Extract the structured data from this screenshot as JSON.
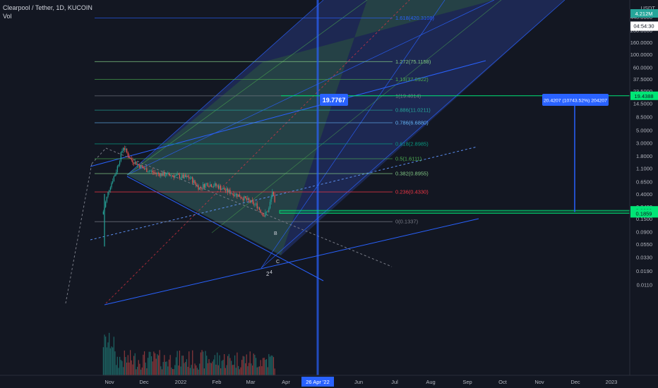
{
  "header": {
    "symbol_line": "Clearpool / Tether, 1D, KUCOIN",
    "volume_label": "Vol"
  },
  "price_axis": {
    "unit": "USDT",
    "ticks": [
      "440.0000",
      "260.0000",
      "160.0000",
      "100.0000",
      "60.0000",
      "37.5000",
      "23.5000",
      "14.5000",
      "8.5000",
      "5.0000",
      "3.0000",
      "1.8000",
      "1.1000",
      "0.6500",
      "0.4000",
      "0.2400",
      "0.1500",
      "0.0900",
      "0.0550",
      "0.0330",
      "0.0190",
      "0.0110"
    ],
    "tick_values": [
      440,
      260,
      160,
      100,
      60,
      37.5,
      23.5,
      14.5,
      8.5,
      5,
      3,
      1.8,
      1.1,
      0.65,
      0.4,
      0.24,
      0.15,
      0.09,
      0.055,
      0.033,
      0.019,
      0.011
    ],
    "labels": {
      "target": "19.4388",
      "price_upper": "0.2089",
      "price_current": "0.1956",
      "countdown": "04:54:30",
      "price_lower": "0.1859",
      "volume": "4.212M"
    }
  },
  "time_axis": {
    "ticks": [
      "Nov",
      "Dec",
      "2022",
      "Feb",
      "Mar",
      "Apr",
      "26 Apr '22",
      "Jun",
      "Jul",
      "Aug",
      "Sep",
      "Oct",
      "Nov",
      "Dec",
      "2023"
    ],
    "highlight": "26 Apr '22"
  },
  "fib_levels": [
    {
      "label": "1.618(420.3108)",
      "value": 420.31,
      "color": "#2962ff"
    },
    {
      "label": "1.272(75.1158)",
      "value": 75.1158,
      "color": "#81c784"
    },
    {
      "label": "1.13(37.0922)",
      "value": 37.0922,
      "color": "#4caf50"
    },
    {
      "label": "1(19.4014)",
      "value": 19.4014,
      "color": "#787b86"
    },
    {
      "label": "0.886(11.0211)",
      "value": 11.0211,
      "color": "#26a69a"
    },
    {
      "label": "0.786(6.6880)",
      "value": 6.688,
      "color": "#64b5f6"
    },
    {
      "label": "0.618(2.8985)",
      "value": 2.8985,
      "color": "#089981"
    },
    {
      "label": "0.5(1.6111)",
      "value": 1.6111,
      "color": "#4caf50"
    },
    {
      "label": "0.382(0.8955)",
      "value": 0.8955,
      "color": "#81c784"
    },
    {
      "label": "0.236(0.4330)",
      "value": 0.433,
      "color": "#f23645"
    },
    {
      "label": "0(0.1337)",
      "value": 0.1337,
      "color": "#787b86"
    }
  ],
  "annotations": {
    "cursor_price": "19.7767",
    "measure_label": "20.4207 (10743.52%) 204207",
    "wave_labels": [
      "2",
      "4",
      "B",
      "C"
    ]
  },
  "colors": {
    "background": "#131722",
    "blue_accent": "#2962ff",
    "green_accent": "#00e676",
    "candle_up": "#26a69a",
    "candle_down": "#ef5350",
    "pitchfork_blue": "#2a3f8f",
    "pitchfork_green": "#2e5a3a"
  },
  "chart_data": {
    "type": "candlestick",
    "title": "Clearpool / Tether, 1D, KUCOIN",
    "ylabel": "USDT",
    "y_scale": "log",
    "ylim": [
      0.0085,
      700
    ],
    "x_range": [
      "2021-10-18",
      "2023-01-20"
    ],
    "price_path": [
      {
        "x": "2021-10-28",
        "y": 0.2
      },
      {
        "x": "2021-11-02",
        "y": 0.5
      },
      {
        "x": "2021-11-08",
        "y": 1.0
      },
      {
        "x": "2021-11-14",
        "y": 2.6
      },
      {
        "x": "2021-11-20",
        "y": 1.6
      },
      {
        "x": "2021-12-01",
        "y": 1.1
      },
      {
        "x": "2021-12-12",
        "y": 0.9
      },
      {
        "x": "2021-12-22",
        "y": 0.85
      },
      {
        "x": "2022-01-01",
        "y": 0.8
      },
      {
        "x": "2022-01-10",
        "y": 0.75
      },
      {
        "x": "2022-01-18",
        "y": 0.5
      },
      {
        "x": "2022-01-24",
        "y": 0.6
      },
      {
        "x": "2022-02-02",
        "y": 0.55
      },
      {
        "x": "2022-02-10",
        "y": 0.45
      },
      {
        "x": "2022-02-20",
        "y": 0.38
      },
      {
        "x": "2022-03-01",
        "y": 0.3
      },
      {
        "x": "2022-03-08",
        "y": 0.25
      },
      {
        "x": "2022-03-14",
        "y": 0.17
      },
      {
        "x": "2022-03-18",
        "y": 0.22
      },
      {
        "x": "2022-03-21",
        "y": 0.45
      },
      {
        "x": "2022-03-24",
        "y": 0.2
      }
    ],
    "measure": {
      "from": 0.1956,
      "to": 20.4207,
      "change": "20.4207 (10743.52%) 204207"
    },
    "cursor": {
      "date": "2022-04-26",
      "price": 19.7767
    }
  }
}
